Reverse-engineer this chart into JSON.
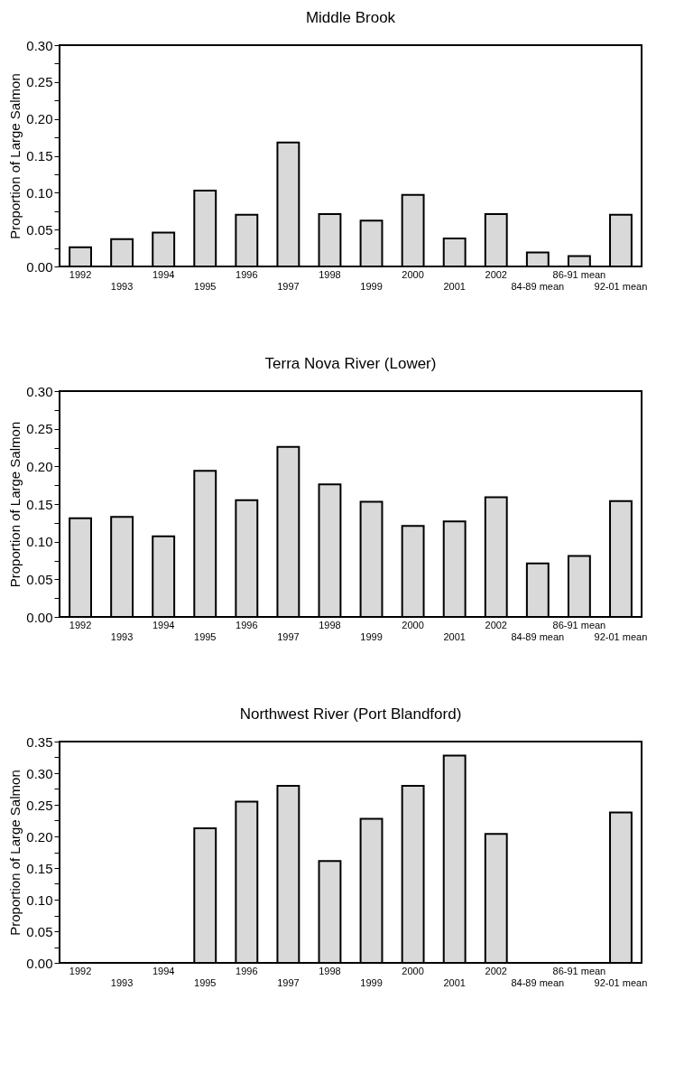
{
  "chart_data": [
    {
      "type": "bar",
      "title": "Middle Brook",
      "ylabel": "Proportion of Large Salmon",
      "categories": [
        "1992",
        "1993",
        "1994",
        "1995",
        "1996",
        "1997",
        "1998",
        "1999",
        "2000",
        "2001",
        "2002",
        "84-89 mean",
        "86-91 mean",
        "92-01 mean"
      ],
      "values": [
        0.026,
        0.037,
        0.046,
        0.103,
        0.07,
        0.168,
        0.071,
        0.062,
        0.097,
        0.038,
        0.071,
        0.019,
        0.014,
        0.07
      ],
      "color": "#d9d9d9",
      "ylim": [
        0,
        0.3
      ],
      "yticks": [
        {
          "value": 0,
          "label": "0.00"
        },
        {
          "value": 0.025,
          "label": null
        },
        0.05,
        {
          "value": 0.075,
          "label": null
        },
        {
          "value": 0.1,
          "label": "0.10"
        },
        {
          "value": 0.125,
          "label": null
        },
        0.15,
        {
          "value": 0.175,
          "label": null
        },
        {
          "value": 0.2,
          "label": "0.20"
        },
        {
          "value": 0.225,
          "label": null
        },
        0.25,
        {
          "value": 0.275,
          "label": null
        },
        {
          "value": 0.3,
          "label": "0.30"
        }
      ]
    },
    {
      "type": "bar",
      "title": "Terra Nova River (Lower)",
      "ylabel": "Proportion of Large Salmon",
      "categories": [
        "1992",
        "1993",
        "1994",
        "1995",
        "1996",
        "1997",
        "1998",
        "1999",
        "2000",
        "2001",
        "2002",
        "84-89 mean",
        "86-91 mean",
        "92-01 mean"
      ],
      "values": [
        0.131,
        0.133,
        0.107,
        0.194,
        0.155,
        0.226,
        0.176,
        0.153,
        0.121,
        0.127,
        0.159,
        0.071,
        0.081,
        0.154
      ],
      "color": "#d9d9d9",
      "ylim": [
        0,
        0.3
      ],
      "yticks": [
        {
          "value": 0,
          "label": "0.00"
        },
        {
          "value": 0.025,
          "label": null
        },
        0.05,
        {
          "value": 0.075,
          "label": null
        },
        {
          "value": 0.1,
          "label": "0.10"
        },
        {
          "value": 0.125,
          "label": null
        },
        0.15,
        {
          "value": 0.175,
          "label": null
        },
        {
          "value": 0.2,
          "label": "0.20"
        },
        {
          "value": 0.225,
          "label": null
        },
        0.25,
        {
          "value": 0.275,
          "label": null
        },
        {
          "value": 0.3,
          "label": "0.30"
        }
      ]
    },
    {
      "type": "bar",
      "title": "Northwest River (Port Blandford)",
      "ylabel": "Proportion of Large Salmon",
      "categories": [
        "1992",
        "1993",
        "1994",
        "1995",
        "1996",
        "1997",
        "1998",
        "1999",
        "2000",
        "2001",
        "2002",
        "84-89 mean",
        "86-91 mean",
        "92-01 mean"
      ],
      "values": [
        null,
        null,
        null,
        0.213,
        0.255,
        0.28,
        0.161,
        0.228,
        0.28,
        0.328,
        0.204,
        null,
        null,
        0.238
      ],
      "color": "#d9d9d9",
      "ylim": [
        0,
        0.35
      ],
      "yticks": [
        {
          "value": 0,
          "label": "0.00"
        },
        {
          "value": 0.025,
          "label": null
        },
        0.05,
        {
          "value": 0.075,
          "label": null
        },
        {
          "value": 0.1,
          "label": "0.10"
        },
        {
          "value": 0.125,
          "label": null
        },
        0.15,
        {
          "value": 0.175,
          "label": null
        },
        {
          "value": 0.2,
          "label": "0.20"
        },
        {
          "value": 0.225,
          "label": null
        },
        0.25,
        {
          "value": 0.275,
          "label": null
        },
        {
          "value": 0.3,
          "label": "0.30"
        },
        {
          "value": 0.325,
          "label": null
        },
        0.35
      ]
    }
  ]
}
